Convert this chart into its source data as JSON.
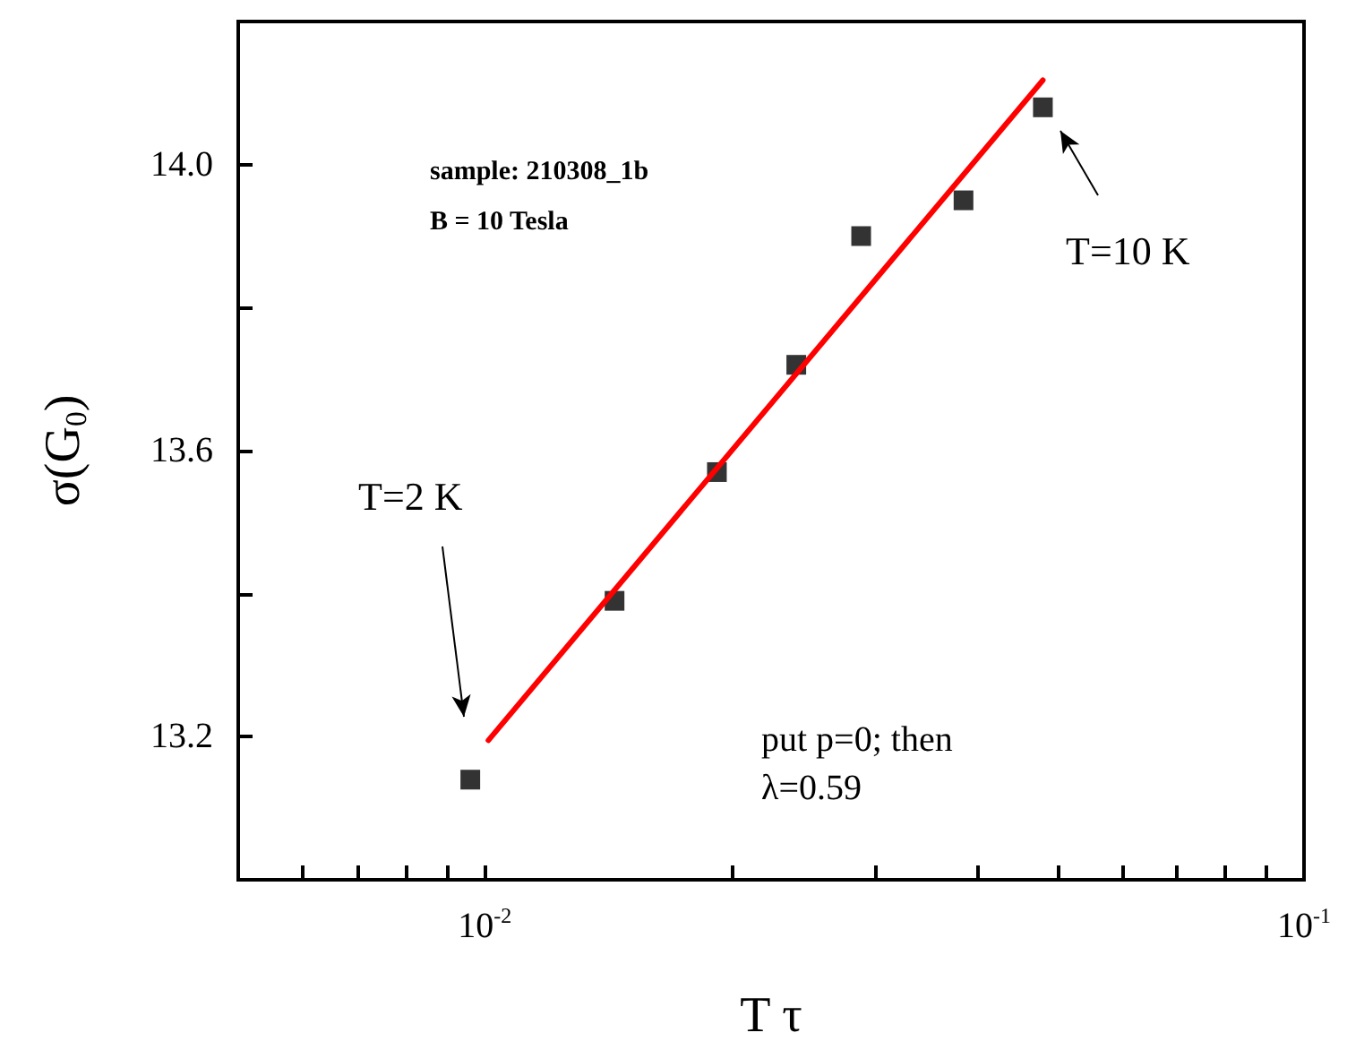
{
  "chart_data": {
    "type": "scatter",
    "xlabel": "T τ",
    "ylabel": "σ(G$_{0}$)",
    "log": "x",
    "xlim": [
      0.005,
      0.1
    ],
    "xticks": [
      {
        "value": 0.006,
        "label": null
      },
      {
        "value": 0.007,
        "label": null
      },
      {
        "value": 0.008,
        "label": null
      },
      {
        "value": 0.009,
        "label": null
      },
      {
        "value": 0.01,
        "label": "10$^{-2}$"
      },
      {
        "value": 0.02,
        "label": null
      },
      {
        "value": 0.03,
        "label": null
      },
      {
        "value": 0.04,
        "label": null
      },
      {
        "value": 0.05,
        "label": null
      },
      {
        "value": 0.06,
        "label": null
      },
      {
        "value": 0.07,
        "label": null
      },
      {
        "value": 0.08,
        "label": null
      },
      {
        "value": 0.09,
        "label": null
      },
      {
        "value": 0.1,
        "label": "10$^{-1}$"
      }
    ],
    "ylim": [
      13.0,
      14.2
    ],
    "yticks": [
      {
        "value": 13.2,
        "label": "13.2"
      },
      {
        "value": 13.4,
        "label": null
      },
      {
        "value": 13.6,
        "label": "13.6"
      },
      {
        "value": 13.8,
        "label": null
      },
      {
        "value": 14.0,
        "label": "14.0"
      }
    ],
    "grid": false,
    "marker": "square",
    "series": [
      {
        "color": "#000000",
        "x": [
          0.0096,
          0.0144,
          0.0192,
          0.024,
          0.0288,
          0.0384,
          0.048
        ],
        "values": [
          13.14,
          13.39,
          13.57,
          13.72,
          13.9,
          13.95,
          14.08
        ]
      },
      {
        "type": "line",
        "color": "#ff0000",
        "marker": "none",
        "x": [
          0.0101,
          0.048
        ],
        "values": [
          13.195,
          14.118
        ]
      }
    ],
    "annotations": [
      "sample: 210308_1b",
      "B = 10 Tesla",
      "T=2 K",
      "T=10 K",
      "put p=0; then",
      "λ=0.59"
    ]
  }
}
